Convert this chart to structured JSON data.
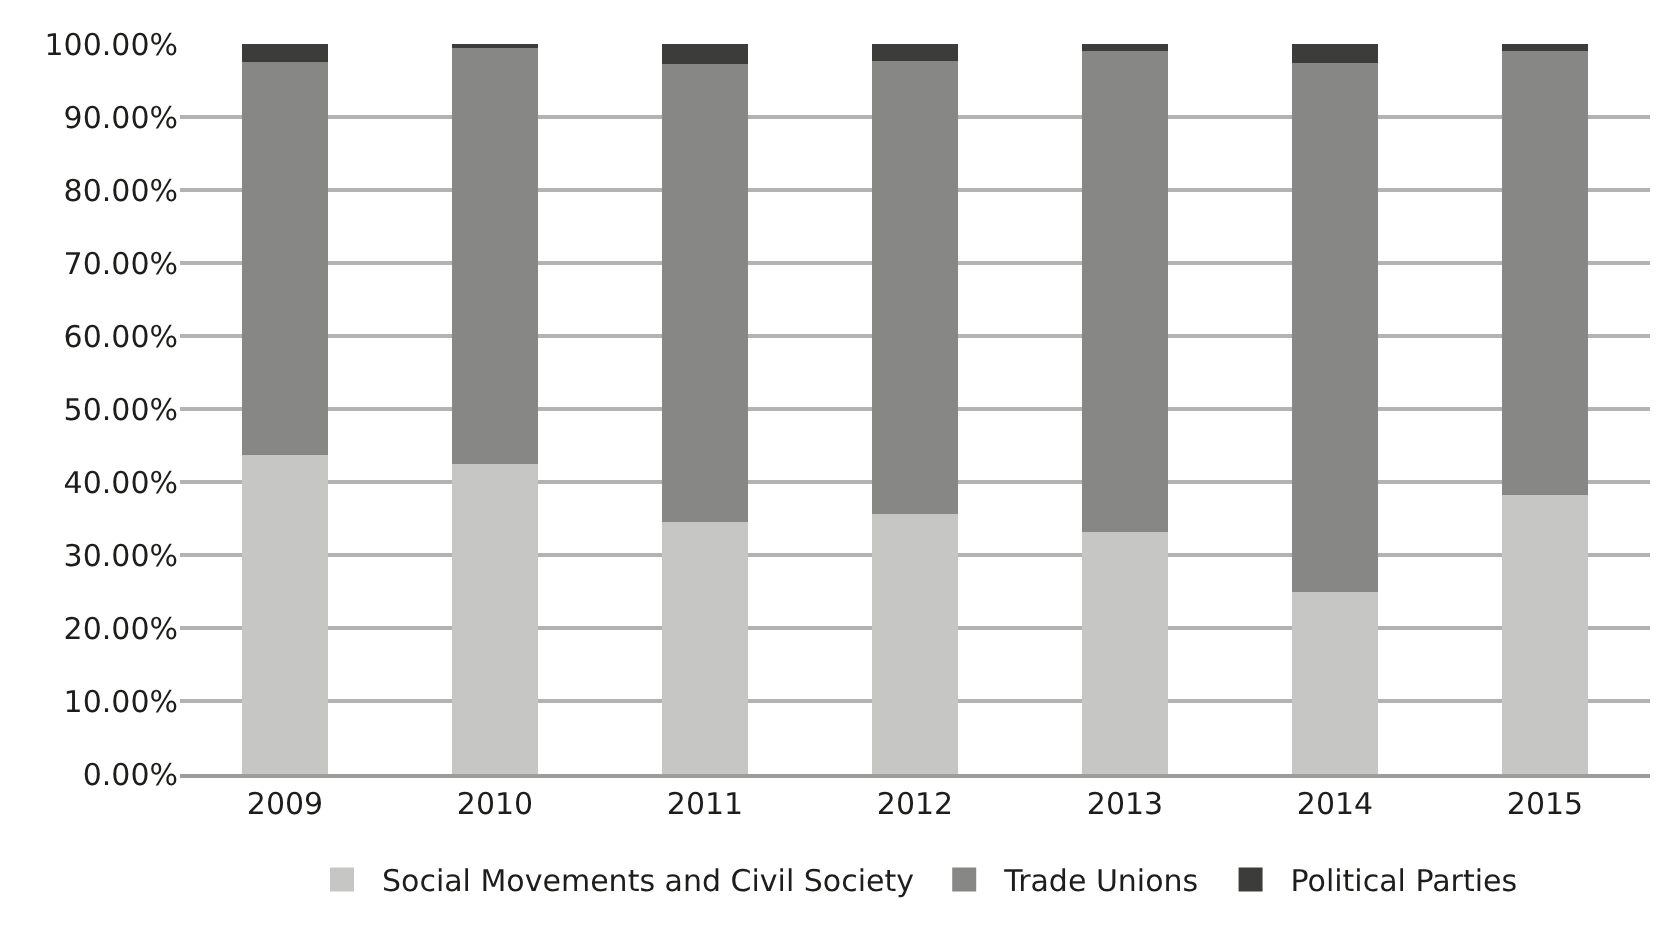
{
  "chart_data": {
    "type": "bar",
    "stacked": true,
    "categories": [
      "2009",
      "2010",
      "2011",
      "2012",
      "2013",
      "2014",
      "2015"
    ],
    "series": [
      {
        "name": "Social Movements and Civil Society",
        "color": "#c6c6c5",
        "values": [
          43.7,
          42.4,
          34.5,
          35.6,
          33.2,
          25.0,
          38.2
        ]
      },
      {
        "name": "Trade Unions",
        "color": "#878786",
        "values": [
          53.8,
          57.2,
          62.7,
          62.1,
          65.9,
          72.4,
          60.9
        ]
      },
      {
        "name": "Political Parties",
        "color": "#3c3c3b",
        "values": [
          2.5,
          0.4,
          2.8,
          2.3,
          0.9,
          2.6,
          0.9
        ]
      }
    ],
    "ylim": [
      0,
      100
    ],
    "yticks": [
      {
        "value": 0,
        "label": "0.00%"
      },
      {
        "value": 10,
        "label": "10.00%"
      },
      {
        "value": 20,
        "label": "20.00%"
      },
      {
        "value": 30,
        "label": "30.00%"
      },
      {
        "value": 40,
        "label": "40.00%"
      },
      {
        "value": 50,
        "label": "50.00%"
      },
      {
        "value": 60,
        "label": "60.00%"
      },
      {
        "value": 70,
        "label": "70.00%"
      },
      {
        "value": 80,
        "label": "80.00%"
      },
      {
        "value": 90,
        "label": "90.00%"
      },
      {
        "value": 100,
        "label": "100.00%"
      }
    ],
    "grid": "y",
    "legend": "bottom"
  }
}
